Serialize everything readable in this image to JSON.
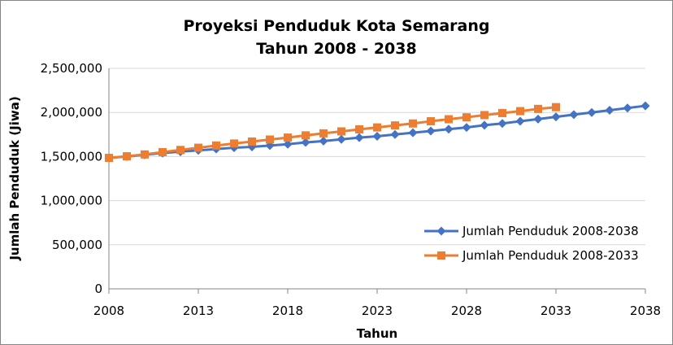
{
  "chart_data": {
    "type": "line",
    "title": "Proyeksi Penduduk Kota Semarang",
    "subtitle": "Tahun 2008 - 2038",
    "xlabel": "Tahun",
    "ylabel": "Jumlah Penduduk (Jiwa)",
    "xlim": [
      2008,
      2038
    ],
    "ylim": [
      0,
      2500000
    ],
    "x_ticks": [
      "2008",
      "2013",
      "2018",
      "2023",
      "2028",
      "2033",
      "2038"
    ],
    "y_ticks": [
      "0",
      "500,000",
      "1,000,000",
      "1,500,000",
      "2,000,000",
      "2,500,000"
    ],
    "grid": "horizontal",
    "legend_position": "bottom-right",
    "series": [
      {
        "name": "Jumlah Penduduk 2008-2038",
        "color": "#4472C4",
        "marker": "diamond",
        "x": [
          2008,
          2009,
          2010,
          2011,
          2012,
          2013,
          2014,
          2015,
          2016,
          2017,
          2018,
          2019,
          2020,
          2021,
          2022,
          2023,
          2024,
          2025,
          2026,
          2027,
          2028,
          2029,
          2030,
          2031,
          2032,
          2033,
          2034,
          2035,
          2036,
          2037,
          2038
        ],
        "values": [
          1485000,
          1500000,
          1520000,
          1540000,
          1555000,
          1570000,
          1585000,
          1600000,
          1610000,
          1625000,
          1640000,
          1660000,
          1675000,
          1695000,
          1715000,
          1730000,
          1750000,
          1770000,
          1790000,
          1810000,
          1830000,
          1855000,
          1875000,
          1900000,
          1925000,
          1950000,
          1975000,
          2000000,
          2025000,
          2050000,
          2075000
        ]
      },
      {
        "name": "Jumlah Penduduk 2008-2033",
        "color": "#ED7D31",
        "marker": "square",
        "x": [
          2008,
          2009,
          2010,
          2011,
          2012,
          2013,
          2014,
          2015,
          2016,
          2017,
          2018,
          2019,
          2020,
          2021,
          2022,
          2023,
          2024,
          2025,
          2026,
          2027,
          2028,
          2029,
          2030,
          2031,
          2032,
          2033
        ],
        "values": [
          1485000,
          1503000,
          1524000,
          1550000,
          1575000,
          1600000,
          1625000,
          1648000,
          1670000,
          1693000,
          1715000,
          1740000,
          1763000,
          1785000,
          1808000,
          1830000,
          1853000,
          1875000,
          1900000,
          1923000,
          1945000,
          1970000,
          1993000,
          2015000,
          2040000,
          2060000
        ]
      }
    ]
  }
}
